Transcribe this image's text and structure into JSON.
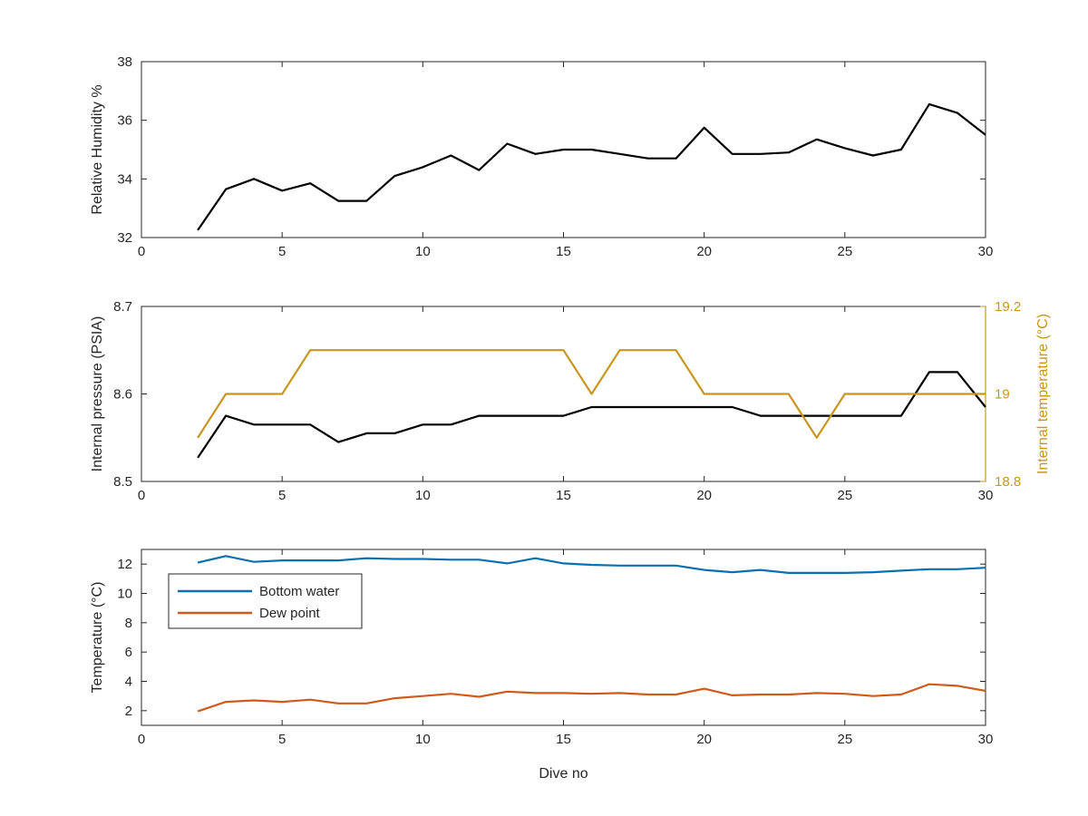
{
  "chart_data": [
    {
      "type": "line",
      "xlabel": "",
      "ylabel": "Relative Humidity %",
      "xlim": [
        0,
        30
      ],
      "ylim": [
        32,
        38
      ],
      "xticks": [
        0,
        5,
        10,
        15,
        20,
        25,
        30
      ],
      "yticks": [
        32,
        34,
        36,
        38
      ],
      "grid": false,
      "series": [
        {
          "color": "#000000",
          "x": [
            2,
            3,
            4,
            5,
            6,
            7,
            8,
            9,
            10,
            11,
            12,
            13,
            14,
            15,
            16,
            17,
            18,
            19,
            20,
            21,
            22,
            23,
            24,
            25,
            26,
            27,
            28,
            29,
            30
          ],
          "y": [
            32.25,
            33.65,
            34.0,
            33.6,
            33.85,
            33.25,
            33.25,
            34.1,
            34.4,
            34.8,
            34.3,
            35.2,
            34.85,
            35.0,
            35.0,
            34.85,
            34.7,
            34.7,
            35.75,
            34.85,
            34.85,
            34.9,
            35.35,
            35.05,
            34.8,
            35.0,
            36.55,
            36.25,
            35.5
          ]
        }
      ]
    },
    {
      "type": "line",
      "xlabel": "",
      "ylabel": "Internal pressure (PSIA)",
      "ylabel_right": "Internal temperature (°C)",
      "xlim": [
        0,
        30
      ],
      "ylim": [
        8.5,
        8.7
      ],
      "ylim_right": [
        18.8,
        19.2
      ],
      "xticks": [
        0,
        5,
        10,
        15,
        20,
        25,
        30
      ],
      "yticks": [
        "8.5",
        "8.6",
        "8.7"
      ],
      "yticks_right": [
        "18.8",
        "19",
        "19.2"
      ],
      "right_axis_color": "#c8961e",
      "grid": false,
      "series": [
        {
          "color": "#000000",
          "axis": "left",
          "x": [
            2,
            3,
            4,
            5,
            6,
            7,
            8,
            9,
            10,
            11,
            12,
            13,
            14,
            15,
            16,
            17,
            18,
            19,
            20,
            21,
            22,
            23,
            24,
            25,
            26,
            27,
            28,
            29,
            30
          ],
          "y": [
            8.527,
            8.575,
            8.565,
            8.565,
            8.565,
            8.545,
            8.555,
            8.555,
            8.565,
            8.565,
            8.575,
            8.575,
            8.575,
            8.575,
            8.585,
            8.585,
            8.585,
            8.585,
            8.585,
            8.585,
            8.575,
            8.575,
            8.575,
            8.575,
            8.575,
            8.575,
            8.625,
            8.625,
            8.585
          ]
        },
        {
          "color": "#c8961e",
          "axis": "right",
          "x": [
            2,
            3,
            4,
            5,
            6,
            7,
            8,
            9,
            10,
            11,
            12,
            13,
            14,
            15,
            16,
            17,
            18,
            19,
            20,
            21,
            22,
            23,
            24,
            25,
            26,
            27,
            28,
            29,
            30
          ],
          "y": [
            18.9,
            19.0,
            19.0,
            19.0,
            19.1,
            19.1,
            19.1,
            19.1,
            19.1,
            19.1,
            19.1,
            19.1,
            19.1,
            19.1,
            19.0,
            19.1,
            19.1,
            19.1,
            19.0,
            19.0,
            19.0,
            19.0,
            18.9,
            19.0,
            19.0,
            19.0,
            19.0,
            19.0,
            19.0
          ]
        }
      ]
    },
    {
      "type": "line",
      "xlabel": "Dive no",
      "ylabel": "Temperature (°C)",
      "xlim": [
        0,
        30
      ],
      "ylim": [
        1,
        13
      ],
      "xticks": [
        0,
        5,
        10,
        15,
        20,
        25,
        30
      ],
      "yticks": [
        2,
        4,
        6,
        8,
        10,
        12
      ],
      "grid": false,
      "legend": "top-left",
      "series": [
        {
          "name": "Bottom water",
          "color": "#0c6fb0",
          "x": [
            2,
            3,
            4,
            5,
            6,
            7,
            8,
            9,
            10,
            11,
            12,
            13,
            14,
            15,
            16,
            17,
            18,
            19,
            20,
            21,
            22,
            23,
            24,
            25,
            26,
            27,
            28,
            29,
            30
          ],
          "y": [
            12.1,
            12.55,
            12.15,
            12.25,
            12.25,
            12.25,
            12.4,
            12.35,
            12.35,
            12.3,
            12.3,
            12.05,
            12.4,
            12.05,
            11.95,
            11.9,
            11.9,
            11.9,
            11.6,
            11.45,
            11.6,
            11.4,
            11.4,
            11.4,
            11.45,
            11.55,
            11.65,
            11.65,
            11.75
          ]
        },
        {
          "name": "Dew point",
          "color": "#d05a1c",
          "x": [
            2,
            3,
            4,
            5,
            6,
            7,
            8,
            9,
            10,
            11,
            12,
            13,
            14,
            15,
            16,
            17,
            18,
            19,
            20,
            21,
            22,
            23,
            24,
            25,
            26,
            27,
            28,
            29,
            30
          ],
          "y": [
            1.95,
            2.6,
            2.7,
            2.6,
            2.75,
            2.5,
            2.5,
            2.85,
            3.0,
            3.15,
            2.95,
            3.3,
            3.2,
            3.2,
            3.15,
            3.2,
            3.1,
            3.1,
            3.5,
            3.05,
            3.1,
            3.1,
            3.2,
            3.15,
            3.0,
            3.1,
            3.8,
            3.7,
            3.35
          ]
        }
      ]
    }
  ]
}
